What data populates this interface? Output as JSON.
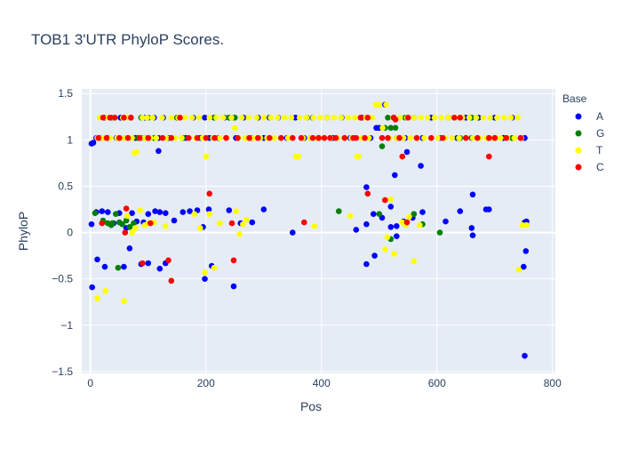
{
  "chart_data": {
    "type": "scatter",
    "title": "TOB1 3'UTR PhyloP Scores.",
    "xlabel": "Pos",
    "ylabel": "PhyloP",
    "xlim": [
      -15,
      805
    ],
    "ylim": [
      -1.52,
      1.55
    ],
    "x_ticks": [
      0,
      200,
      400,
      600,
      800
    ],
    "y_ticks": [
      -1.5,
      -1,
      -0.5,
      0,
      0.5,
      1,
      1.5
    ],
    "x_tick_labels": [
      "0",
      "200",
      "400",
      "600",
      "800"
    ],
    "y_tick_labels": [
      "−1.5",
      "−1",
      "−0.5",
      "0",
      "0.5",
      "1",
      "1.5"
    ],
    "legend_title": "Base",
    "legend_position": "right",
    "grid": true,
    "background": "#e5ecf6",
    "series": [
      {
        "name": "A",
        "color": "#0000ff",
        "x": [
          2,
          5,
          10,
          18,
          24,
          31,
          38,
          45,
          52,
          60,
          70,
          78,
          88,
          95,
          102,
          110,
          118,
          126,
          135,
          150,
          165,
          178,
          190,
          198,
          206,
          214,
          222,
          232,
          240,
          252,
          265,
          280,
          290,
          300,
          310,
          325,
          340,
          355,
          370,
          385,
          395,
          410,
          420,
          435,
          450,
          470,
          485,
          495,
          500,
          510,
          525,
          530,
          545,
          560,
          575,
          590,
          605,
          620,
          635,
          650,
          660,
          672,
          688,
          700,
          715,
          730,
          745,
          752,
          2,
          10,
          20,
          30,
          40,
          50,
          62,
          72,
          80,
          92,
          100,
          112,
          120,
          130,
          145,
          160,
          172,
          185,
          195,
          205,
          240,
          260,
          280,
          300,
          350,
          460,
          478,
          490,
          505,
          520,
          530,
          542,
          558,
          575,
          615,
          640,
          660,
          685,
          752,
          755,
          3,
          12,
          25,
          58,
          88,
          100,
          120,
          130,
          198,
          210,
          248,
          478,
          492,
          530,
          750,
          754,
          68,
          118,
          478,
          527,
          548,
          572,
          662,
          690,
          662,
          520,
          752
        ],
        "y": [
          0.96,
          0.97,
          1.02,
          1.02,
          1.24,
          1.02,
          1.24,
          1.02,
          1.24,
          1.02,
          1.24,
          1.02,
          1.02,
          1.24,
          1.02,
          1.24,
          1.02,
          1.24,
          1.02,
          1.24,
          1.02,
          1.24,
          1.02,
          1.24,
          1.02,
          1.24,
          1.02,
          1.24,
          1.24,
          1.02,
          1.24,
          1.02,
          1.24,
          1.02,
          1.24,
          1.24,
          1.02,
          1.24,
          1.02,
          1.24,
          1.02,
          1.24,
          1.02,
          1.24,
          1.02,
          1.24,
          1.02,
          1.13,
          1.13,
          1.38,
          1.24,
          1.02,
          1.02,
          1.24,
          1.02,
          1.24,
          1.02,
          1.24,
          1.02,
          1.24,
          1.02,
          1.24,
          1.02,
          1.24,
          1.02,
          1.24,
          1.02,
          1.02,
          0.09,
          0.22,
          0.23,
          0.22,
          0.1,
          0.21,
          0.05,
          0.21,
          0.12,
          0.11,
          0.2,
          0.23,
          0.22,
          0.21,
          0.13,
          0.22,
          0.23,
          0.24,
          0.06,
          0.25,
          0.24,
          0.1,
          0.11,
          0.25,
          0.0,
          0.03,
          0.09,
          0.2,
          0.16,
          0.06,
          0.07,
          0.12,
          0.16,
          0.22,
          0.12,
          0.23,
          0.05,
          0.25,
          0.11,
          0.12,
          -0.59,
          -0.29,
          -0.37,
          -0.37,
          -0.34,
          -0.33,
          -0.39,
          -0.33,
          -0.5,
          -0.36,
          -0.58,
          -0.34,
          -0.25,
          -0.04,
          -0.37,
          -0.2,
          -0.17,
          0.88,
          0.49,
          0.62,
          0.87,
          0.72,
          0.41,
          0.25,
          -0.03,
          0.28,
          -1.33
        ]
      },
      {
        "name": "G",
        "color": "#008000",
        "x": [
          8,
          22,
          30,
          36,
          44,
          50,
          55,
          68,
          82,
          88,
          95,
          100,
          110,
          150,
          160,
          215,
          240,
          245,
          250,
          375,
          380,
          430,
          500,
          505,
          510,
          515,
          520,
          528,
          535,
          545,
          560,
          575,
          605,
          38,
          48,
          62,
          75,
          520,
          640,
          660,
          700,
          730
        ],
        "y": [
          0.21,
          0.13,
          0.1,
          0.08,
          0.2,
          0.11,
          0.09,
          0.06,
          1.02,
          1.24,
          1.02,
          1.24,
          1.02,
          1.24,
          1.02,
          1.24,
          1.24,
          1.24,
          1.24,
          1.24,
          1.02,
          0.23,
          0.2,
          0.93,
          1.13,
          1.24,
          1.13,
          1.13,
          1.02,
          1.24,
          0.2,
          0.09,
          0.0,
          0.1,
          -0.38,
          0.13,
          0.1,
          -0.07,
          1.02,
          1.24,
          1.02,
          1.02
        ],
        "y_note": ""
      },
      {
        "name": "T",
        "color": "#ffff00",
        "x": [
          12,
          16,
          20,
          26,
          28,
          34,
          40,
          46,
          52,
          56,
          60,
          64,
          72,
          76,
          80,
          86,
          90,
          94,
          98,
          104,
          108,
          114,
          124,
          132,
          140,
          146,
          152,
          158,
          164,
          170,
          176,
          182,
          188,
          194,
          200,
          206,
          212,
          218,
          224,
          230,
          236,
          244,
          250,
          256,
          262,
          268,
          274,
          282,
          288,
          294,
          300,
          306,
          312,
          318,
          324,
          330,
          336,
          342,
          348,
          356,
          362,
          368,
          374,
          380,
          386,
          392,
          398,
          404,
          410,
          416,
          422,
          428,
          434,
          440,
          446,
          452,
          458,
          464,
          470,
          476,
          482,
          488,
          494,
          500,
          506,
          512,
          518,
          524,
          530,
          536,
          542,
          548,
          554,
          560,
          566,
          572,
          578,
          584,
          590,
          596,
          602,
          608,
          614,
          620,
          626,
          632,
          638,
          644,
          650,
          656,
          662,
          668,
          674,
          680,
          686,
          692,
          698,
          704,
          710,
          716,
          722,
          728,
          734,
          740,
          746,
          12,
          26,
          58,
          64,
          72,
          78,
          86,
          94,
          100,
          110,
          130,
          180,
          190,
          198,
          206,
          214,
          224,
          252,
          258,
          264,
          270,
          360,
          388,
          450,
          462,
          510,
          514,
          520,
          526,
          540,
          546,
          552,
          560,
          570,
          742,
          748,
          755
        ],
        "y": [
          1.02,
          1.24,
          1.02,
          1.02,
          1.24,
          1.02,
          1.24,
          1.02,
          1.02,
          1.24,
          1.02,
          1.24,
          1.02,
          0.86,
          0.87,
          1.02,
          1.24,
          1.02,
          1.24,
          1.02,
          1.24,
          1.02,
          1.24,
          1.02,
          1.24,
          1.02,
          1.24,
          1.02,
          1.24,
          1.02,
          1.24,
          1.02,
          1.24,
          1.02,
          0.82,
          1.24,
          1.02,
          1.24,
          1.02,
          1.24,
          1.02,
          1.24,
          1.13,
          1.02,
          1.24,
          1.02,
          1.24,
          1.02,
          1.24,
          1.02,
          1.24,
          1.02,
          1.24,
          1.02,
          1.24,
          1.02,
          1.24,
          1.02,
          1.24,
          0.82,
          1.24,
          1.02,
          1.24,
          1.02,
          1.24,
          1.02,
          1.24,
          1.02,
          1.24,
          1.02,
          1.24,
          1.02,
          1.24,
          1.02,
          1.24,
          1.02,
          1.24,
          0.82,
          1.02,
          1.24,
          1.02,
          1.24,
          1.38,
          1.38,
          1.13,
          1.38,
          1.02,
          1.24,
          1.02,
          1.24,
          1.02,
          1.24,
          1.02,
          1.24,
          1.02,
          1.24,
          1.02,
          1.24,
          1.02,
          1.24,
          1.02,
          1.24,
          1.02,
          1.24,
          1.02,
          1.24,
          1.02,
          1.24,
          1.02,
          1.24,
          1.02,
          1.24,
          1.02,
          1.24,
          1.02,
          1.24,
          1.02,
          1.24,
          1.02,
          1.24,
          1.02,
          1.24,
          1.02,
          1.24,
          1.02,
          -0.71,
          -0.63,
          -0.74,
          0.18,
          0.0,
          0.05,
          0.24,
          0.08,
          0.1,
          0.11,
          0.07,
          0.2,
          0.05,
          -0.43,
          0.2,
          -0.38,
          0.1,
          0.23,
          -0.02,
          0.09,
          0.14,
          0.82,
          0.07,
          0.18,
          0.82,
          -0.18,
          -0.05,
          0.36,
          -0.23,
          0.11,
          0.08,
          0.17,
          -0.31,
          0.08,
          -0.4,
          0.08,
          0.08
        ]
      },
      {
        "name": "C",
        "color": "#ff0000",
        "x": [
          14,
          22,
          28,
          34,
          42,
          50,
          58,
          65,
          70,
          85,
          100,
          125,
          140,
          155,
          170,
          185,
          200,
          215,
          235,
          255,
          275,
          290,
          310,
          330,
          350,
          365,
          385,
          395,
          405,
          415,
          425,
          440,
          455,
          468,
          475,
          480,
          505,
          515,
          525,
          535,
          550,
          565,
          590,
          610,
          630,
          640,
          650,
          670,
          690,
          700,
          720,
          745,
          20,
          60,
          62,
          90,
          104,
          135,
          140,
          206,
          245,
          248,
          370,
          460,
          480,
          510,
          528,
          540,
          548,
          690
        ],
        "y": [
          1.02,
          1.24,
          1.02,
          1.24,
          1.24,
          1.02,
          1.24,
          1.02,
          1.24,
          1.02,
          1.02,
          1.02,
          1.02,
          1.24,
          1.02,
          1.02,
          1.02,
          1.02,
          1.02,
          1.02,
          1.02,
          1.02,
          1.02,
          1.02,
          1.02,
          1.02,
          1.02,
          1.02,
          1.02,
          1.02,
          1.02,
          1.02,
          1.02,
          1.24,
          1.02,
          1.24,
          1.02,
          1.02,
          1.24,
          1.02,
          1.24,
          1.02,
          1.02,
          1.02,
          1.24,
          1.24,
          1.02,
          1.02,
          1.02,
          1.02,
          1.02,
          1.02,
          0.1,
          0.0,
          0.26,
          -0.33,
          0.1,
          -0.3,
          -0.52,
          0.42,
          0.1,
          -0.3,
          0.11,
          1.02,
          0.42,
          0.35,
          1.22,
          0.82,
          0.11,
          0.82
        ]
      }
    ]
  }
}
